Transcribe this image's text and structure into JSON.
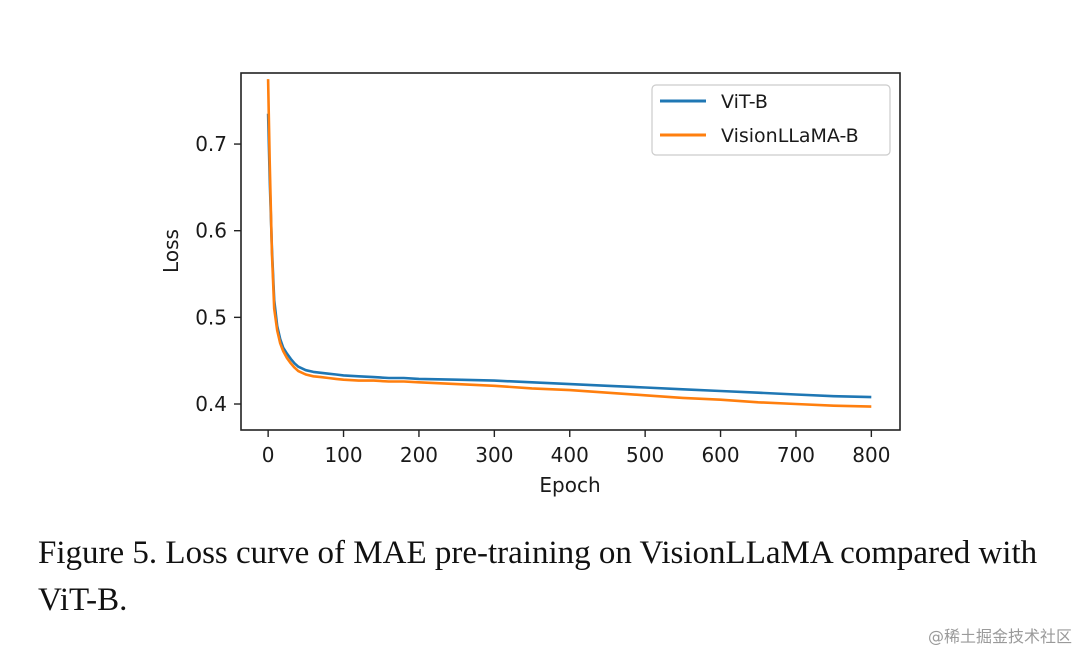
{
  "chart_data": {
    "type": "line",
    "xlabel": "Epoch",
    "ylabel": "Loss",
    "xlim": [
      -36,
      838
    ],
    "ylim": [
      0.37,
      0.782
    ],
    "xticks": [
      0,
      100,
      200,
      300,
      400,
      500,
      600,
      700,
      800
    ],
    "yticks": [
      0.4,
      0.5,
      0.6,
      0.7
    ],
    "ytick_labels": [
      "0.4",
      "0.5",
      "0.6",
      "0.7"
    ],
    "grid": false,
    "legend": "top-right",
    "series": [
      {
        "name": "ViT-B",
        "color": "#1f77b4",
        "x": [
          0,
          2,
          5,
          8,
          12,
          16,
          20,
          25,
          30,
          35,
          40,
          50,
          60,
          70,
          80,
          90,
          100,
          120,
          140,
          160,
          180,
          200,
          250,
          300,
          350,
          400,
          450,
          500,
          550,
          600,
          650,
          700,
          750,
          800
        ],
        "y": [
          0.735,
          0.66,
          0.58,
          0.52,
          0.49,
          0.475,
          0.465,
          0.458,
          0.452,
          0.447,
          0.443,
          0.439,
          0.437,
          0.436,
          0.435,
          0.434,
          0.433,
          0.432,
          0.431,
          0.43,
          0.43,
          0.429,
          0.428,
          0.427,
          0.425,
          0.423,
          0.421,
          0.419,
          0.417,
          0.415,
          0.413,
          0.411,
          0.409,
          0.408
        ]
      },
      {
        "name": "VisionLLaMA-B",
        "color": "#ff7f0e",
        "x": [
          0,
          2,
          5,
          8,
          12,
          16,
          20,
          25,
          30,
          35,
          40,
          50,
          60,
          70,
          80,
          90,
          100,
          120,
          140,
          160,
          180,
          200,
          250,
          300,
          350,
          400,
          450,
          500,
          550,
          600,
          650,
          700,
          750,
          800
        ],
        "y": [
          0.775,
          0.68,
          0.575,
          0.51,
          0.485,
          0.47,
          0.461,
          0.453,
          0.447,
          0.442,
          0.438,
          0.434,
          0.432,
          0.431,
          0.43,
          0.429,
          0.428,
          0.427,
          0.427,
          0.426,
          0.426,
          0.425,
          0.423,
          0.421,
          0.418,
          0.416,
          0.413,
          0.41,
          0.407,
          0.405,
          0.402,
          0.4,
          0.398,
          0.397
        ]
      }
    ]
  },
  "caption": {
    "text": "Figure 5. Loss curve of MAE pre-training on VisionLLaMA compared with ViT-B."
  },
  "watermark": {
    "text": "@稀土掘金技术社区"
  }
}
